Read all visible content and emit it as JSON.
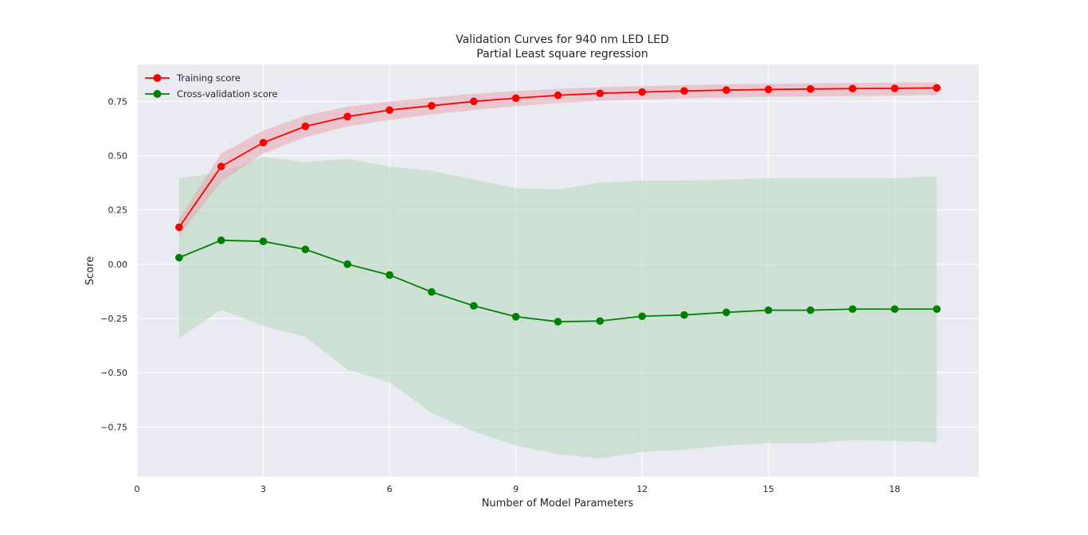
{
  "chart_data": {
    "type": "line",
    "title": "Validation Curves for 940 nm LED LED",
    "subtitle": "Partial Least square regression",
    "xlabel": "Number of Model Parameters",
    "ylabel": "Score",
    "xlim": [
      0,
      20
    ],
    "ylim": [
      -0.98,
      0.92
    ],
    "xticks": [
      0,
      3,
      6,
      9,
      12,
      15,
      18
    ],
    "xtick_labels": [
      "0",
      "3",
      "6",
      "9",
      "12",
      "15",
      "18"
    ],
    "yticks": [
      -0.75,
      -0.5,
      -0.25,
      0.0,
      0.25,
      0.5,
      0.75
    ],
    "ytick_labels": [
      "−0.75",
      "−0.50",
      "−0.25",
      "0.00",
      "0.25",
      "0.50",
      "0.75"
    ],
    "grid": true,
    "legend_position": "top-left",
    "x": [
      1,
      2,
      3,
      4,
      5,
      6,
      7,
      8,
      9,
      10,
      11,
      12,
      13,
      14,
      15,
      16,
      17,
      18,
      19
    ],
    "series": [
      {
        "name": "Training score",
        "color": "#ff0000",
        "band_color": "#e8a6b0",
        "values": [
          0.17,
          0.45,
          0.56,
          0.635,
          0.68,
          0.71,
          0.73,
          0.75,
          0.765,
          0.778,
          0.787,
          0.793,
          0.798,
          0.802,
          0.805,
          0.807,
          0.809,
          0.81,
          0.812
        ],
        "lower": [
          0.13,
          0.38,
          0.51,
          0.585,
          0.635,
          0.665,
          0.69,
          0.71,
          0.728,
          0.742,
          0.752,
          0.758,
          0.764,
          0.768,
          0.771,
          0.773,
          0.775,
          0.777,
          0.779
        ],
        "upper": [
          0.21,
          0.51,
          0.615,
          0.685,
          0.725,
          0.75,
          0.768,
          0.785,
          0.797,
          0.807,
          0.815,
          0.82,
          0.825,
          0.828,
          0.831,
          0.833,
          0.835,
          0.836,
          0.838
        ]
      },
      {
        "name": "Cross-validation score",
        "color": "#008000",
        "band_color": "#b9d9bf",
        "values": [
          0.03,
          0.11,
          0.105,
          0.068,
          0.0,
          -0.05,
          -0.128,
          -0.192,
          -0.242,
          -0.265,
          -0.262,
          -0.24,
          -0.234,
          -0.222,
          -0.212,
          -0.212,
          -0.207,
          -0.207,
          -0.207
        ],
        "lower": [
          -0.34,
          -0.21,
          -0.285,
          -0.335,
          -0.485,
          -0.545,
          -0.685,
          -0.77,
          -0.835,
          -0.875,
          -0.895,
          -0.865,
          -0.855,
          -0.835,
          -0.825,
          -0.825,
          -0.81,
          -0.815,
          -0.82
        ],
        "upper": [
          0.395,
          0.425,
          0.495,
          0.47,
          0.485,
          0.45,
          0.43,
          0.39,
          0.35,
          0.345,
          0.375,
          0.385,
          0.385,
          0.39,
          0.395,
          0.395,
          0.395,
          0.395,
          0.405
        ]
      }
    ]
  }
}
